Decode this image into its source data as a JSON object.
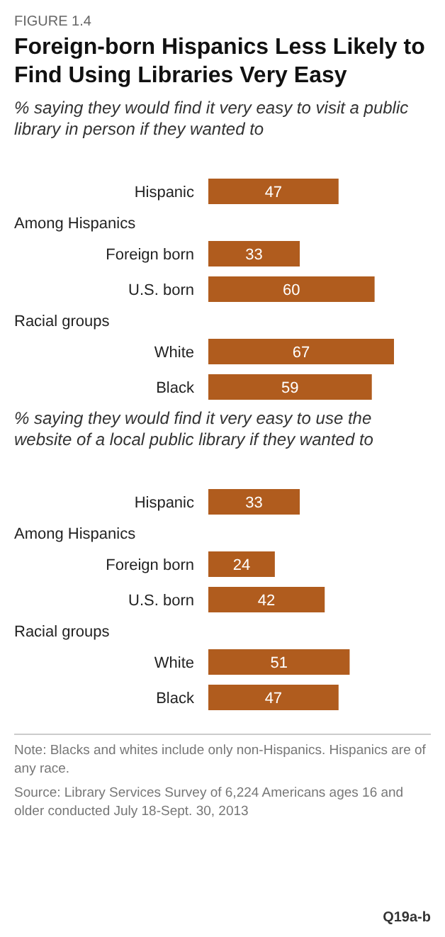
{
  "chart_data": [
    {
      "type": "bar",
      "orientation": "horizontal",
      "title": "Foreign-born  Hispanics Less Likely to Find Using Libraries Very Easy",
      "subtitle": "% saying they would find it very easy to visit a public library in person if they wanted to",
      "annotations": [
        "FIGURE 1.4"
      ],
      "categories": [
        "Hispanic"
      ],
      "values": [
        47
      ],
      "color": "#b05c1e",
      "data_labels": true
    },
    {
      "type": "bar",
      "orientation": "horizontal",
      "subtitle": "Among Hispanics",
      "categories": [
        "Foreign born",
        "U.S. born"
      ],
      "values": [
        33,
        60
      ],
      "color": "#b05c1e",
      "data_labels": true
    },
    {
      "type": "bar",
      "orientation": "horizontal",
      "subtitle": "Racial groups",
      "categories": [
        "White",
        "Black"
      ],
      "values": [
        67,
        59
      ],
      "color": "#b05c1e",
      "data_labels": true
    },
    {
      "type": "bar",
      "orientation": "horizontal",
      "subtitle": "% saying they would find it very easy to use the website of a local public library if they wanted to",
      "categories": [
        "Hispanic"
      ],
      "values": [
        33
      ],
      "color": "#b05c1e",
      "data_labels": true
    },
    {
      "type": "bar",
      "orientation": "horizontal",
      "subtitle": "Among Hispanics",
      "categories": [
        "Foreign born",
        "U.S. born"
      ],
      "values": [
        24,
        42
      ],
      "color": "#b05c1e",
      "data_labels": true
    },
    {
      "type": "bar",
      "orientation": "horizontal",
      "subtitle": "Racial groups",
      "annotations": [
        "Note: Blacks and whites include only non-Hispanics. Hispanics are of any race.",
        "Source: Library Services Survey of 6,224 Americans ages 16 and older conducted July 18-Sept. 30, 2013",
        "Q19a-b"
      ],
      "categories": [
        "White",
        "Black"
      ],
      "values": [
        51,
        47
      ],
      "color": "#b05c1e",
      "data_labels": true
    }
  ]
}
